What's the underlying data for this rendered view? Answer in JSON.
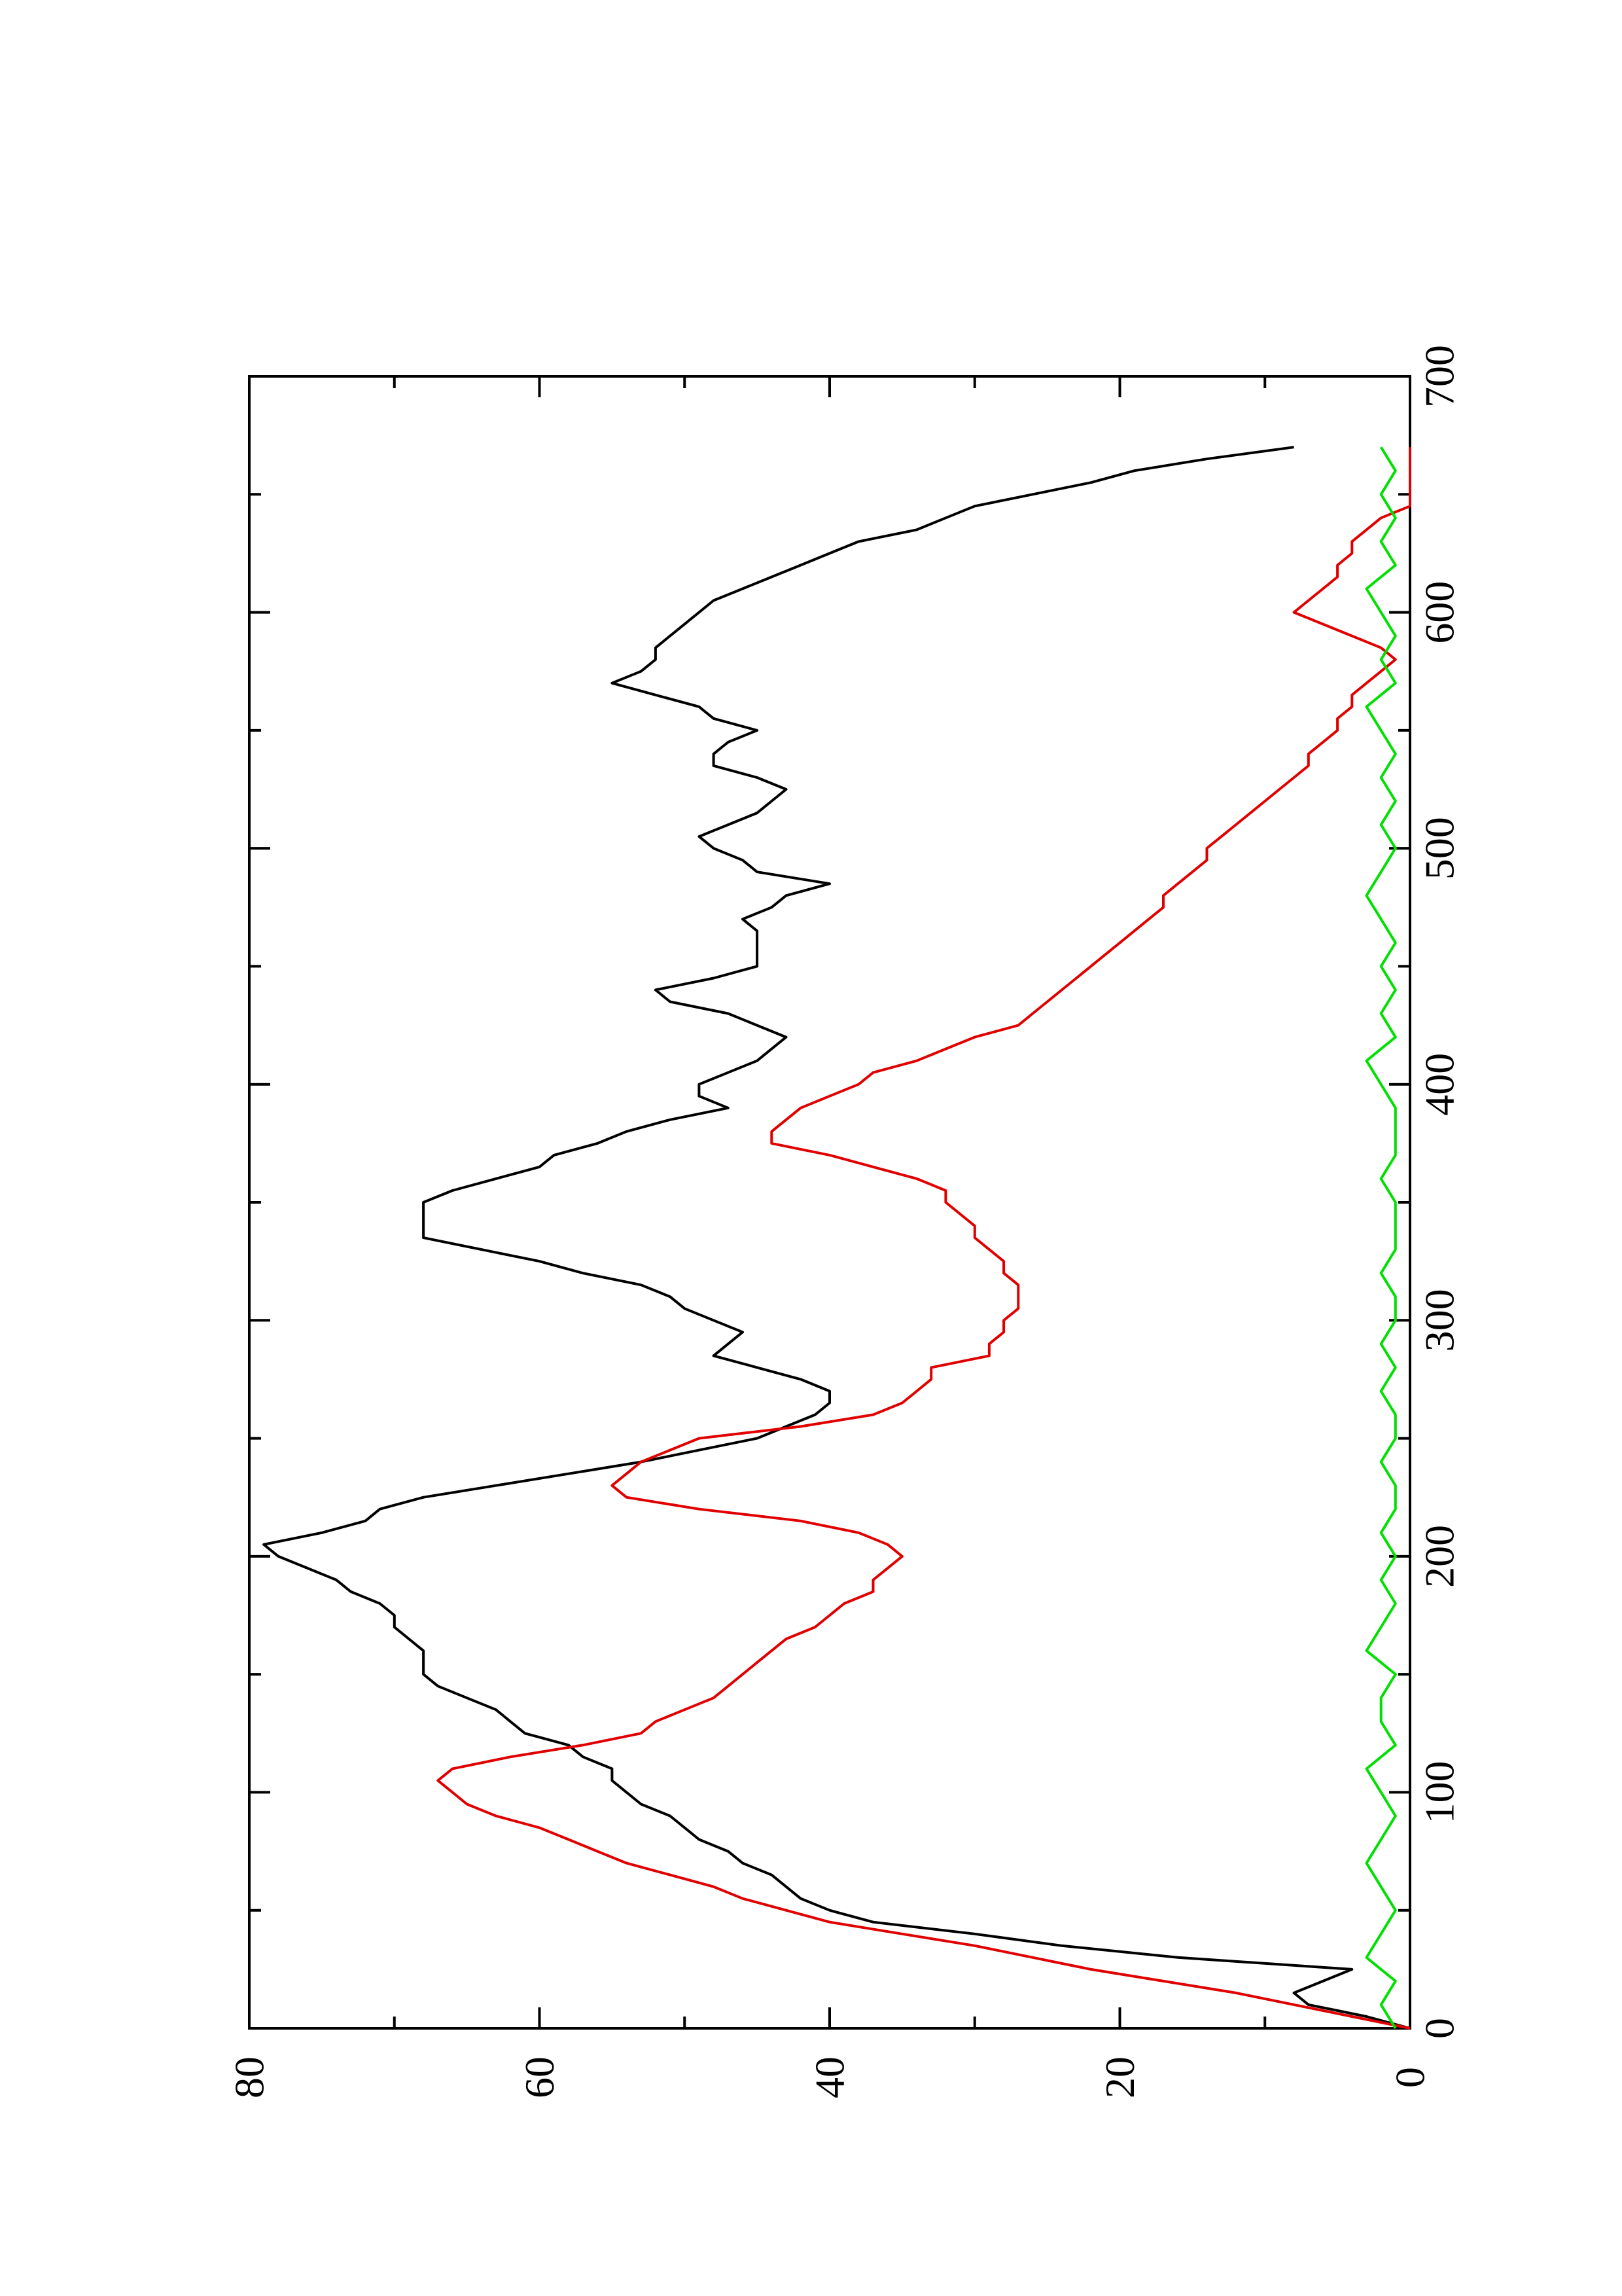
{
  "chart_data": {
    "type": "line",
    "orientation": "rotated-90-ccw",
    "title": "",
    "xlabel": "",
    "ylabel": "",
    "xlim": [
      0,
      700
    ],
    "ylim": [
      0,
      80
    ],
    "x_ticks": [
      0,
      100,
      200,
      300,
      400,
      500,
      600,
      700
    ],
    "x_minor_ticks": [
      50,
      150,
      250,
      350,
      450,
      550,
      650
    ],
    "y_ticks": [
      0,
      20,
      40,
      60,
      80
    ],
    "y_minor_ticks": [
      10,
      30,
      50,
      70
    ],
    "x_tick_labels": [
      "0",
      "100",
      "200",
      "300",
      "400",
      "500",
      "600",
      "700"
    ],
    "y_tick_labels": [
      "0",
      "20",
      "40",
      "60",
      "80"
    ],
    "grid": false,
    "legend": "none",
    "series": [
      {
        "color": "#000000",
        "x": [
          0,
          5,
          10,
          15,
          20,
          25,
          30,
          35,
          40,
          45,
          50,
          55,
          60,
          65,
          70,
          75,
          80,
          85,
          90,
          95,
          100,
          105,
          110,
          115,
          120,
          125,
          130,
          135,
          140,
          145,
          150,
          155,
          160,
          165,
          170,
          175,
          180,
          185,
          190,
          195,
          200,
          205,
          210,
          215,
          220,
          225,
          230,
          235,
          240,
          245,
          250,
          255,
          260,
          265,
          270,
          275,
          280,
          285,
          290,
          295,
          300,
          305,
          310,
          315,
          320,
          325,
          330,
          335,
          340,
          345,
          350,
          355,
          360,
          365,
          370,
          375,
          380,
          385,
          390,
          395,
          400,
          405,
          410,
          415,
          420,
          425,
          430,
          435,
          440,
          445,
          450,
          455,
          460,
          465,
          470,
          475,
          480,
          485,
          490,
          495,
          500,
          505,
          510,
          515,
          520,
          525,
          530,
          535,
          540,
          545,
          550,
          555,
          560,
          565,
          570,
          575,
          580,
          585,
          590,
          595,
          600,
          605,
          610,
          615,
          620,
          625,
          630,
          635,
          640,
          645,
          650,
          655,
          660,
          665,
          670
        ],
        "values": [
          0,
          3,
          7,
          8,
          6,
          4,
          16,
          24,
          30,
          37,
          40,
          42,
          43,
          44,
          46,
          47,
          49,
          50,
          51,
          53,
          54,
          55,
          55,
          57,
          58,
          61,
          62,
          63,
          65,
          67,
          68,
          68,
          68,
          69,
          70,
          70,
          71,
          73,
          74,
          76,
          78,
          79,
          75,
          72,
          71,
          68,
          63,
          58,
          53,
          49,
          45,
          43,
          41,
          40,
          40,
          42,
          45,
          48,
          47,
          46,
          48,
          50,
          51,
          53,
          57,
          60,
          64,
          68,
          68,
          68,
          68,
          66,
          63,
          60,
          59,
          56,
          54,
          51,
          47,
          49,
          49,
          47,
          45,
          44,
          43,
          45,
          47,
          51,
          52,
          48,
          45,
          45,
          45,
          45,
          46,
          44,
          43,
          40,
          45,
          46,
          48,
          49,
          47,
          45,
          44,
          43,
          45,
          48,
          48,
          47,
          45,
          48,
          49,
          52,
          55,
          53,
          52,
          52,
          51,
          50,
          49,
          48,
          46,
          44,
          42,
          40,
          38,
          34,
          32,
          30,
          26,
          22,
          19,
          14,
          8
        ]
      },
      {
        "color": "#e00000",
        "x": [
          0,
          5,
          10,
          15,
          20,
          25,
          30,
          35,
          40,
          45,
          50,
          55,
          60,
          65,
          70,
          75,
          80,
          85,
          90,
          95,
          100,
          105,
          110,
          115,
          120,
          125,
          130,
          135,
          140,
          145,
          150,
          155,
          160,
          165,
          170,
          175,
          180,
          185,
          190,
          195,
          200,
          205,
          210,
          215,
          220,
          225,
          230,
          235,
          240,
          245,
          250,
          255,
          260,
          265,
          270,
          275,
          280,
          285,
          290,
          295,
          300,
          305,
          310,
          315,
          320,
          325,
          330,
          335,
          340,
          345,
          350,
          355,
          360,
          365,
          370,
          375,
          380,
          385,
          390,
          395,
          400,
          405,
          410,
          415,
          420,
          425,
          430,
          435,
          440,
          445,
          450,
          455,
          460,
          465,
          470,
          475,
          480,
          485,
          490,
          495,
          500,
          505,
          510,
          515,
          520,
          525,
          530,
          535,
          540,
          545,
          550,
          555,
          560,
          565,
          570,
          575,
          580,
          585,
          590,
          595,
          600,
          605,
          610,
          615,
          620,
          625,
          630,
          635,
          640,
          645,
          650,
          655,
          660,
          665,
          670
        ],
        "values": [
          0,
          4,
          8,
          12,
          17,
          22,
          26,
          30,
          35,
          40,
          43,
          46,
          48,
          51,
          54,
          56,
          58,
          60,
          63,
          65,
          66,
          67,
          66,
          62,
          57,
          53,
          52,
          50,
          48,
          47,
          46,
          45,
          44,
          43,
          41,
          40,
          39,
          37,
          37,
          36,
          35,
          36,
          38,
          42,
          49,
          54,
          55,
          54,
          53,
          51,
          49,
          42,
          37,
          35,
          34,
          33,
          33,
          29,
          29,
          28,
          28,
          27,
          27,
          27,
          28,
          28,
          29,
          30,
          30,
          31,
          32,
          32,
          34,
          37,
          40,
          44,
          44,
          43,
          42,
          40,
          38,
          37,
          34,
          32,
          30,
          27,
          26,
          25,
          24,
          23,
          22,
          21,
          20,
          19,
          18,
          17,
          17,
          16,
          15,
          14,
          14,
          13,
          12,
          11,
          10,
          9,
          8,
          7,
          7,
          6,
          5,
          5,
          4,
          4,
          3,
          2,
          1,
          2,
          4,
          6,
          8,
          7,
          6,
          5,
          5,
          4,
          4,
          3,
          2,
          0,
          0,
          0,
          0,
          0,
          0
        ]
      },
      {
        "color": "#00e000",
        "x": [
          0,
          10,
          20,
          30,
          40,
          50,
          60,
          70,
          80,
          90,
          100,
          110,
          120,
          130,
          140,
          150,
          160,
          170,
          180,
          190,
          200,
          210,
          220,
          230,
          240,
          250,
          260,
          270,
          280,
          290,
          300,
          310,
          320,
          330,
          340,
          350,
          360,
          370,
          380,
          390,
          400,
          410,
          420,
          430,
          440,
          450,
          460,
          470,
          480,
          490,
          500,
          510,
          520,
          530,
          540,
          550,
          560,
          570,
          580,
          590,
          600,
          610,
          620,
          630,
          640,
          650,
          660,
          670
        ],
        "values": [
          1,
          2,
          1,
          3,
          2,
          1,
          2,
          3,
          2,
          1,
          2,
          3,
          1,
          2,
          2,
          1,
          3,
          2,
          1,
          2,
          1,
          2,
          1,
          1,
          2,
          1,
          1,
          2,
          1,
          2,
          1,
          1,
          2,
          1,
          1,
          1,
          2,
          1,
          1,
          1,
          2,
          3,
          1,
          2,
          1,
          2,
          1,
          2,
          3,
          2,
          1,
          2,
          1,
          2,
          1,
          2,
          3,
          1,
          2,
          1,
          2,
          3,
          1,
          2,
          1,
          2,
          1,
          2
        ]
      }
    ]
  }
}
